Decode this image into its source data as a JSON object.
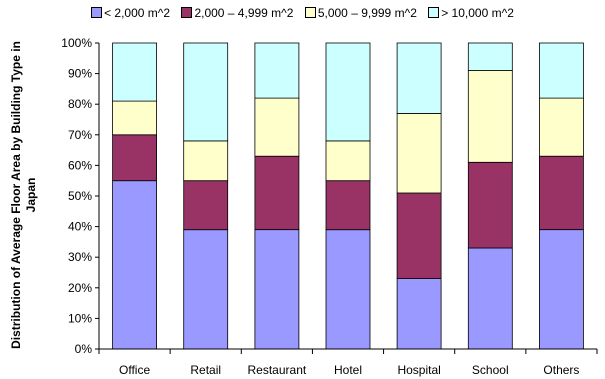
{
  "chart_data": {
    "type": "bar",
    "stacked": true,
    "categories": [
      "Office",
      "Retail",
      "Restaurant",
      "Hotel",
      "Hospital",
      "School",
      "Others"
    ],
    "series": [
      {
        "name": "< 2,000 m^2",
        "color": "#9999ff",
        "values": [
          55,
          39,
          39,
          39,
          23,
          33,
          39
        ]
      },
      {
        "name": "2,000 – 4,999 m^2",
        "color": "#993366",
        "values": [
          15,
          16,
          24,
          16,
          28,
          28,
          24
        ]
      },
      {
        "name": "5,000 – 9,999 m^2",
        "color": "#ffffcc",
        "values": [
          11,
          13,
          19,
          13,
          26,
          30,
          19
        ]
      },
      {
        "name": "> 10,000 m^2",
        "color": "#ccffff",
        "values": [
          19,
          32,
          18,
          32,
          23,
          9,
          18
        ]
      }
    ],
    "yticks": [
      "0%",
      "10%",
      "20%",
      "30%",
      "40%",
      "50%",
      "60%",
      "70%",
      "80%",
      "90%",
      "100%"
    ],
    "ylim": [
      0,
      100
    ],
    "ylabel": "Distribution of Average  Floor Area by Building Type in Japan",
    "legend_position": "top",
    "grid": false
  }
}
